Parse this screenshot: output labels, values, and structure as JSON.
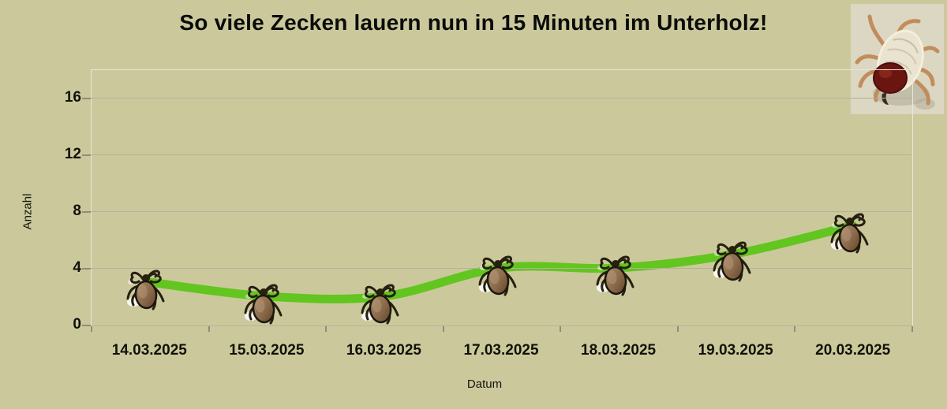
{
  "window": {
    "background_color": "#cbc99c"
  },
  "chart_data": {
    "type": "line",
    "title": "So viele Zecken lauern nun in 15 Minuten im Unterholz!",
    "xlabel": "Datum",
    "ylabel": "Anzahl",
    "categories": [
      "14.03.2025",
      "15.03.2025",
      "16.03.2025",
      "17.03.2025",
      "18.03.2025",
      "19.03.2025",
      "20.03.2025"
    ],
    "series": [
      {
        "name": "Zecken",
        "values": [
          3,
          2,
          2,
          4,
          4,
          5,
          7
        ]
      }
    ],
    "ylim": [
      0,
      18
    ],
    "yticks": [
      0,
      4,
      8,
      12,
      16
    ],
    "grid": "horizontal",
    "legend": "none",
    "smooth": true,
    "line_color": "#63c51f",
    "line_width": 11,
    "marker_icon": "tick-insect-icon"
  },
  "decorations": {
    "corner_image": "tick-photo",
    "corner_image_background": "#dbd7c2"
  }
}
